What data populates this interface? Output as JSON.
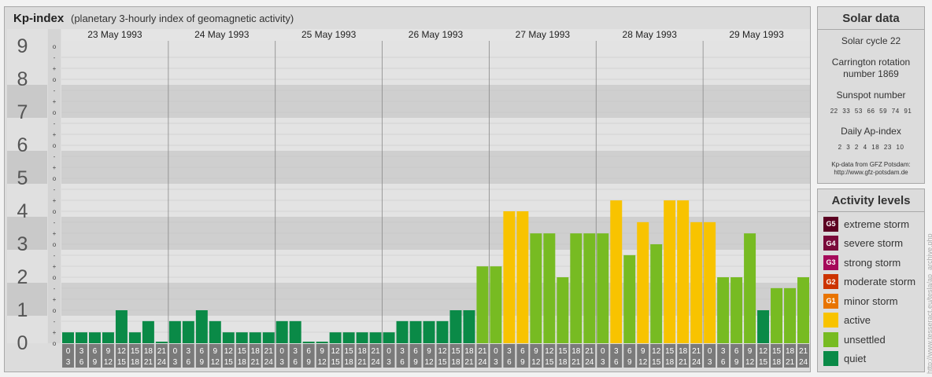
{
  "header": {
    "title": "Kp-index",
    "subtitle": "(planetary 3-hourly index of geomagnetic activity)"
  },
  "chart_data": {
    "type": "bar",
    "ylim": [
      0,
      9
    ],
    "y_major_labels": [
      "0",
      "1",
      "2",
      "3",
      "4",
      "5",
      "6",
      "7",
      "8",
      "9"
    ],
    "y_minor_symbols": [
      "o",
      "+",
      "-",
      "o",
      "+",
      "-",
      "o",
      "+",
      "-",
      "o",
      "+",
      "-",
      "o",
      "+",
      "-",
      "o",
      "+",
      "-",
      "o",
      "+",
      "-",
      "o",
      "+",
      "-",
      "o",
      "+",
      "-",
      "o"
    ],
    "days": [
      "23 May 1993",
      "24 May 1993",
      "25 May 1993",
      "26 May 1993",
      "27 May 1993",
      "28 May 1993",
      "29 May 1993"
    ],
    "interval_labels": [
      {
        "start": "0",
        "end": "3"
      },
      {
        "start": "3",
        "end": "6"
      },
      {
        "start": "6",
        "end": "9"
      },
      {
        "start": "9",
        "end": "12"
      },
      {
        "start": "12",
        "end": "15"
      },
      {
        "start": "15",
        "end": "18"
      },
      {
        "start": "18",
        "end": "21"
      },
      {
        "start": "21",
        "end": "24"
      }
    ],
    "values": [
      0.33,
      0.33,
      0.33,
      0.33,
      1.0,
      0.33,
      0.67,
      0.0,
      0.67,
      0.67,
      1.0,
      0.67,
      0.33,
      0.33,
      0.33,
      0.33,
      0.67,
      0.67,
      0.0,
      0.0,
      0.33,
      0.33,
      0.33,
      0.33,
      0.33,
      0.67,
      0.67,
      0.67,
      0.67,
      1.0,
      1.0,
      2.33,
      2.33,
      4.0,
      4.0,
      3.33,
      3.33,
      2.0,
      3.33,
      3.33,
      3.33,
      4.33,
      2.67,
      3.67,
      3.0,
      4.33,
      4.33,
      3.67,
      3.67,
      2.0,
      2.0,
      3.33,
      1.0,
      1.67,
      1.67,
      2.0
    ],
    "levels": [
      {
        "code": "G5",
        "label": "extreme storm",
        "color": "#5c0022"
      },
      {
        "code": "G4",
        "label": "severe storm",
        "color": "#7a0a3a"
      },
      {
        "code": "G3",
        "label": "strong storm",
        "color": "#a50a5a"
      },
      {
        "code": "G2",
        "label": "moderate storm",
        "color": "#cc3300"
      },
      {
        "code": "G1",
        "label": "minor storm",
        "color": "#e87400"
      },
      {
        "code": "",
        "label": "active",
        "color": "#f8c300"
      },
      {
        "code": "",
        "label": "unsettled",
        "color": "#77bb22"
      },
      {
        "code": "",
        "label": "quiet",
        "color": "#0a8a47"
      }
    ]
  },
  "solar": {
    "title": "Solar data",
    "cycle": "Solar cycle 22",
    "carrington_line1": "Carrington rotation",
    "carrington_line2": "number 1869",
    "sunspot_label": "Sunspot number",
    "sunspot_values": "22 33 53 66 59 74 91",
    "ap_label": "Daily Ap-index",
    "ap_values": "2 3 2 4 18 23 10",
    "credit_line1": "Kp-data from GFZ Potsdam:",
    "credit_line2": "http://www.gfz-potsdam.de"
  },
  "activity": {
    "title": "Activity levels"
  },
  "watermark": "http://www.tesseract.eu/tesla/ap_archive.php"
}
